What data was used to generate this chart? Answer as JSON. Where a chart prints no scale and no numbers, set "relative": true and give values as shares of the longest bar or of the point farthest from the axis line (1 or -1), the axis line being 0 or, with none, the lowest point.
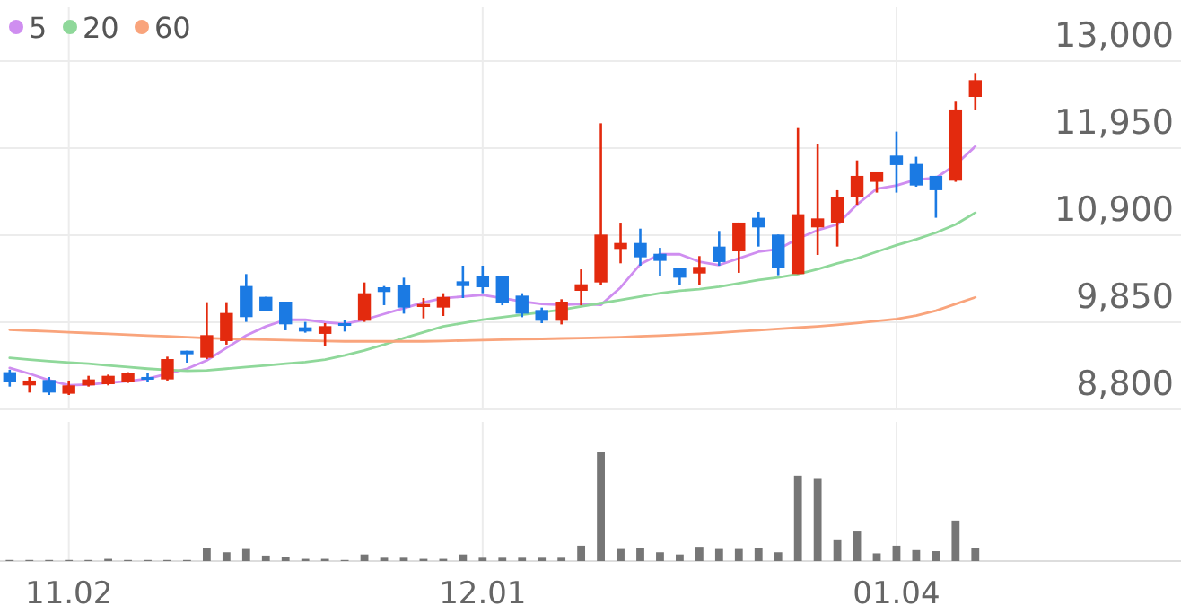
{
  "chart_data": [
    {
      "type": "candlestick",
      "categories": [
        null,
        null,
        null,
        "11.02",
        null,
        null,
        null,
        null,
        null,
        null,
        null,
        null,
        null,
        null,
        null,
        null,
        null,
        null,
        null,
        null,
        null,
        null,
        null,
        null,
        "12.01",
        null,
        null,
        null,
        null,
        null,
        null,
        null,
        null,
        null,
        null,
        null,
        null,
        null,
        null,
        null,
        null,
        null,
        null,
        null,
        null,
        "01.04",
        null,
        null,
        null,
        null
      ],
      "ohlc": [
        [
          9248,
          9277,
          9074,
          9132
        ],
        [
          9089,
          9190,
          9002,
          9147
        ],
        [
          9154,
          9190,
          8973,
          9002
        ],
        [
          8988,
          9147,
          8973,
          9089
        ],
        [
          9089,
          9204,
          9074,
          9161
        ],
        [
          9103,
          9219,
          9089,
          9204
        ],
        [
          9132,
          9248,
          9118,
          9233
        ],
        [
          9190,
          9233,
          9132,
          9161
        ],
        [
          9161,
          9435,
          9147,
          9406
        ],
        [
          9507,
          9507,
          9363,
          9464
        ],
        [
          9421,
          10092,
          9406,
          9695
        ],
        [
          9623,
          10092,
          9580,
          9962
        ],
        [
          10287,
          10431,
          9854,
          9912
        ],
        [
          10157,
          10157,
          9984,
          9984
        ],
        [
          10099,
          10099,
          9753,
          9825
        ],
        [
          9789,
          9854,
          9724,
          9738
        ],
        [
          9710,
          9839,
          9565,
          9803
        ],
        [
          9839,
          9876,
          9738,
          9818
        ],
        [
          9868,
          10330,
          9854,
          10200
        ],
        [
          10272,
          10287,
          10056,
          10215
        ],
        [
          10301,
          10387,
          9954,
          10027
        ],
        [
          10034,
          10142,
          9897,
          10070
        ],
        [
          10027,
          10200,
          9926,
          10156
        ],
        [
          10344,
          10532,
          10142,
          10286
        ],
        [
          10402,
          10532,
          10200,
          10272
        ],
        [
          10402,
          10402,
          10055,
          10084
        ],
        [
          10171,
          10200,
          9911,
          9954
        ],
        [
          9998,
          10027,
          9839,
          9868
        ],
        [
          9868,
          10128,
          9824,
          10099
        ],
        [
          10229,
          10488,
          10055,
          10308
        ],
        [
          10330,
          12249,
          10301,
          10907
        ],
        [
          10734,
          11051,
          10561,
          10806
        ],
        [
          10806,
          10979,
          10532,
          10633
        ],
        [
          10676,
          10748,
          10402,
          10590
        ],
        [
          10503,
          10503,
          10301,
          10387
        ],
        [
          10438,
          10648,
          10301,
          10518
        ],
        [
          10763,
          10951,
          10532,
          10576
        ],
        [
          10705,
          11052,
          10446,
          11052
        ],
        [
          11110,
          11182,
          10763,
          10994
        ],
        [
          10907,
          10907,
          10417,
          10503
        ],
        [
          10431,
          12192,
          10431,
          11153
        ],
        [
          10994,
          12004,
          10662,
          11102
        ],
        [
          11052,
          11442,
          10763,
          11355
        ],
        [
          11355,
          11802,
          11268,
          11615
        ],
        [
          11543,
          11658,
          11413,
          11658
        ],
        [
          11860,
          12149,
          11413,
          11745
        ],
        [
          11759,
          11846,
          11485,
          11499
        ],
        [
          11615,
          11615,
          11110,
          11442
        ],
        [
          11557,
          12510,
          11543,
          12416
        ],
        [
          12567,
          12856,
          12409,
          12769
        ]
      ],
      "colors": [
        "#1b7ae3",
        "#e32a0e",
        "#1b7ae3",
        "#e32a0e",
        "#e32a0e",
        "#e32a0e",
        "#e32a0e",
        "#1b7ae3",
        "#e32a0e",
        "#1b7ae3",
        "#e32a0e",
        "#e32a0e",
        "#1b7ae3",
        "#1b7ae3",
        "#1b7ae3",
        "#1b7ae3",
        "#e32a0e",
        "#1b7ae3",
        "#e32a0e",
        "#1b7ae3",
        "#1b7ae3",
        "#e32a0e",
        "#e32a0e",
        "#1b7ae3",
        "#1b7ae3",
        "#1b7ae3",
        "#1b7ae3",
        "#1b7ae3",
        "#e32a0e",
        "#e32a0e",
        "#e32a0e",
        "#e32a0e",
        "#1b7ae3",
        "#1b7ae3",
        "#1b7ae3",
        "#e32a0e",
        "#1b7ae3",
        "#e32a0e",
        "#1b7ae3",
        "#1b7ae3",
        "#e32a0e",
        "#e32a0e",
        "#e32a0e",
        "#e32a0e",
        "#e32a0e",
        "#1b7ae3",
        "#1b7ae3",
        "#1b7ae3",
        "#e32a0e",
        "#e32a0e"
      ],
      "series": [
        {
          "type": "line",
          "name": "5",
          "color": "#cf8ef0",
          "values": [
            9300,
            9230,
            9150,
            9090,
            9100,
            9120,
            9140,
            9170,
            9230,
            9290,
            9390,
            9540,
            9690,
            9800,
            9880,
            9880,
            9850,
            9830,
            9880,
            9950,
            10020,
            10090,
            10140,
            10160,
            10180,
            10140,
            10100,
            10070,
            10060,
            10070,
            10060,
            10270,
            10550,
            10670,
            10670,
            10580,
            10540,
            10620,
            10700,
            10730,
            10860,
            10960,
            11030,
            11270,
            11460,
            11500,
            11570,
            11590,
            11750,
            11970
          ]
        },
        {
          "type": "line",
          "name": "20",
          "color": "#8fd89a",
          "values": [
            9420,
            9400,
            9380,
            9365,
            9350,
            9330,
            9310,
            9290,
            9275,
            9265,
            9270,
            9290,
            9310,
            9330,
            9350,
            9370,
            9400,
            9450,
            9510,
            9580,
            9660,
            9730,
            9800,
            9840,
            9880,
            9910,
            9940,
            9970,
            10000,
            10040,
            10080,
            10120,
            10160,
            10200,
            10230,
            10250,
            10280,
            10320,
            10360,
            10390,
            10430,
            10490,
            10560,
            10620,
            10700,
            10780,
            10850,
            10930,
            11030,
            11170
          ]
        },
        {
          "type": "line",
          "name": "60",
          "color": "#f9a47c",
          "values": [
            9760,
            9750,
            9740,
            9730,
            9720,
            9710,
            9700,
            9690,
            9680,
            9670,
            9660,
            9650,
            9645,
            9640,
            9635,
            9630,
            9625,
            9620,
            9620,
            9620,
            9620,
            9620,
            9625,
            9630,
            9635,
            9640,
            9645,
            9650,
            9655,
            9660,
            9665,
            9670,
            9680,
            9690,
            9700,
            9710,
            9725,
            9740,
            9755,
            9770,
            9785,
            9800,
            9820,
            9840,
            9865,
            9890,
            9930,
            9990,
            10070,
            10150
          ]
        }
      ],
      "ylim": [
        8800,
        13000
      ],
      "yticks": [
        {
          "value": 13000,
          "label": "13,000"
        },
        {
          "value": 11950,
          "label": "11,950"
        },
        {
          "value": 10900,
          "label": "10,900"
        },
        {
          "value": 9850,
          "label": "9,850"
        },
        {
          "value": 8800,
          "label": "8,800"
        }
      ],
      "grid": true,
      "legend": "top left",
      "tick_labels": "y"
    },
    {
      "type": "bar",
      "categories": [
        null,
        null,
        null,
        "11.02",
        null,
        null,
        null,
        null,
        null,
        null,
        null,
        null,
        null,
        null,
        null,
        null,
        null,
        null,
        null,
        null,
        null,
        null,
        null,
        null,
        "12.01",
        null,
        null,
        null,
        null,
        null,
        null,
        null,
        null,
        null,
        null,
        null,
        null,
        null,
        null,
        null,
        null,
        null,
        null,
        null,
        null,
        "01.04",
        null,
        null,
        null,
        null
      ],
      "values": [
        0.01,
        0.01,
        0.01,
        0.01,
        0.01,
        0.02,
        0.01,
        0.01,
        0.01,
        0.01,
        0.12,
        0.08,
        0.11,
        0.05,
        0.04,
        0.02,
        0.02,
        0.01,
        0.06,
        0.03,
        0.03,
        0.02,
        0.02,
        0.06,
        0.03,
        0.03,
        0.03,
        0.03,
        0.03,
        0.14,
        1,
        0.11,
        0.12,
        0.08,
        0.06,
        0.13,
        0.11,
        0.11,
        0.12,
        0.08,
        0.78,
        0.75,
        0.19,
        0.27,
        0.07,
        0.14,
        0.1,
        0.09,
        0.37,
        0.12
      ],
      "color": "#767676",
      "relative": true,
      "grid": "x",
      "tick_labels": "x"
    }
  ]
}
